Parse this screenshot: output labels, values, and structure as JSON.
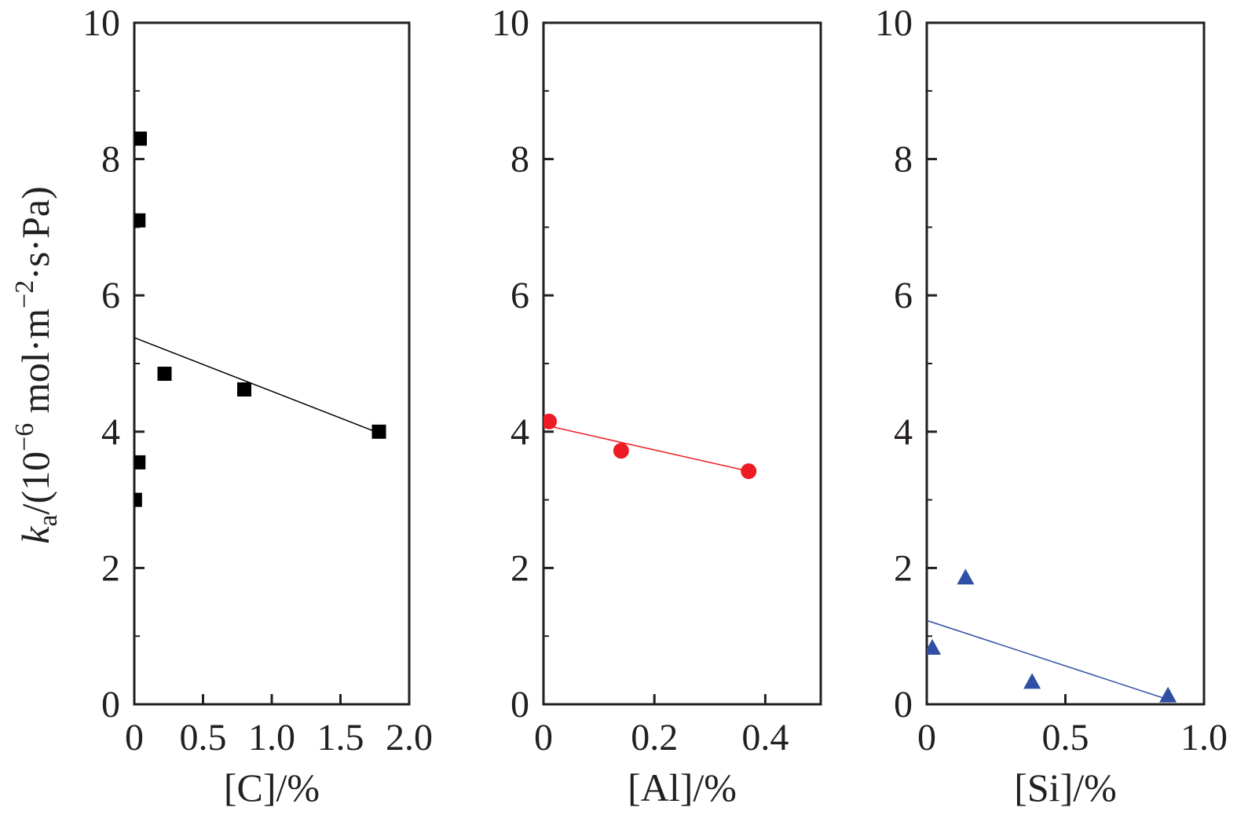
{
  "ylabel": {
    "symbol": "k",
    "subscript": "a",
    "text_before_exp": "/(10",
    "exponent": "−6",
    "text_mid": " mol·m",
    "exponent2": "−2",
    "text_after": "·s·Pa)"
  },
  "chart_data": [
    {
      "type": "scatter",
      "xlabel": "[C]/%",
      "xlim": [
        0,
        2.0
      ],
      "ylim": [
        0,
        10
      ],
      "xticks": [
        "0",
        "0.5",
        "1.0",
        "1.5",
        "2.0"
      ],
      "xtick_values": [
        0,
        0.5,
        1.0,
        1.5,
        2.0
      ],
      "yticks": [
        "0",
        "2",
        "4",
        "6",
        "8",
        "10"
      ],
      "ytick_values": [
        0,
        2,
        4,
        6,
        8,
        10
      ],
      "marker": "square",
      "color": "#000000",
      "points": [
        {
          "x": 0.005,
          "y": 3.0
        },
        {
          "x": 0.03,
          "y": 3.55
        },
        {
          "x": 0.03,
          "y": 7.1
        },
        {
          "x": 0.04,
          "y": 8.3
        },
        {
          "x": 0.22,
          "y": 4.85
        },
        {
          "x": 0.8,
          "y": 4.62
        },
        {
          "x": 1.78,
          "y": 4.0
        }
      ],
      "fit_line": {
        "x": [
          0,
          1.78
        ],
        "y": [
          5.38,
          3.98
        ]
      }
    },
    {
      "type": "scatter",
      "xlabel": "[Al]/%",
      "xlim": [
        0,
        0.5
      ],
      "ylim": [
        0,
        10
      ],
      "xticks": [
        "0",
        "0.2",
        "0.4"
      ],
      "xtick_values": [
        0,
        0.2,
        0.4
      ],
      "yticks": [
        "0",
        "2",
        "4",
        "6",
        "8",
        "10"
      ],
      "ytick_values": [
        0,
        2,
        4,
        6,
        8,
        10
      ],
      "marker": "circle",
      "color": "#ed1c24",
      "points": [
        {
          "x": 0.01,
          "y": 4.15
        },
        {
          "x": 0.14,
          "y": 3.72
        },
        {
          "x": 0.37,
          "y": 3.42
        }
      ],
      "fit_line": {
        "x": [
          0,
          0.37
        ],
        "y": [
          4.1,
          3.42
        ]
      }
    },
    {
      "type": "scatter",
      "xlabel": "[Si]/%",
      "xlim": [
        0,
        1.0
      ],
      "ylim": [
        0,
        10
      ],
      "xticks": [
        "0",
        "0.5",
        "1.0"
      ],
      "xtick_values": [
        0,
        0.5,
        1.0
      ],
      "yticks": [
        "0",
        "2",
        "4",
        "6",
        "8",
        "10"
      ],
      "ytick_values": [
        0,
        2,
        4,
        6,
        8,
        10
      ],
      "marker": "triangle",
      "color": "#2e4fa3",
      "points": [
        {
          "x": 0.02,
          "y": 0.82
        },
        {
          "x": 0.14,
          "y": 1.85
        },
        {
          "x": 0.38,
          "y": 0.32
        },
        {
          "x": 0.87,
          "y": 0.12
        }
      ],
      "fit_line": {
        "x": [
          0,
          0.87
        ],
        "y": [
          1.23,
          0.07
        ]
      }
    }
  ]
}
